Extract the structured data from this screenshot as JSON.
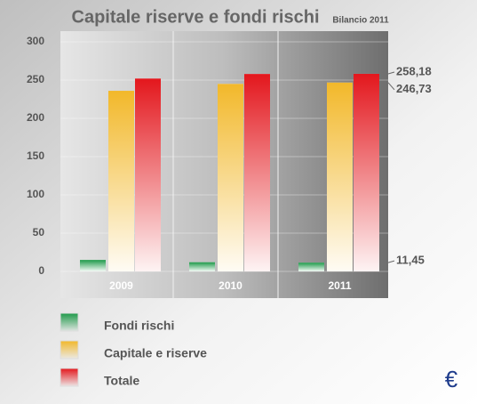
{
  "chart_data": {
    "type": "bar",
    "title": "Capitale riserve e fondi rischi",
    "subtitle": "Bilancio 2011",
    "categories": [
      "2009",
      "2010",
      "2011"
    ],
    "series": [
      {
        "name": "Fondi rischi",
        "color": "#1f9a4a",
        "values": [
          15,
          12,
          11.45
        ],
        "value_labels": [
          null,
          null,
          "11,45"
        ]
      },
      {
        "name": "Capitale e riserve",
        "color": "#f2b82a",
        "values": [
          236,
          245,
          246.73
        ],
        "value_labels": [
          null,
          null,
          "246,73"
        ]
      },
      {
        "name": "Totale",
        "color": "#e3171d",
        "values": [
          252,
          258,
          258.18
        ],
        "value_labels": [
          null,
          null,
          "258,18"
        ]
      }
    ],
    "ylim": [
      0,
      300
    ],
    "yticks": [
      0,
      50,
      100,
      150,
      200,
      250,
      300
    ],
    "grid": true
  },
  "currency_icon": "€"
}
